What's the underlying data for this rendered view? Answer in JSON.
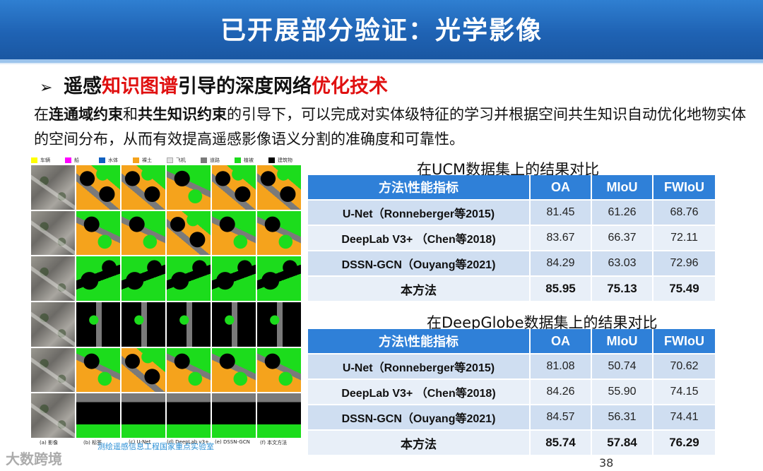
{
  "title": "已开展部分验证：光学影像",
  "heading": {
    "bullet": "➢",
    "part1": "遥感",
    "part2_red": "知识图谱",
    "part3": "引导的深度网络",
    "part4_red": "优化技术"
  },
  "paragraph": {
    "p1": "在",
    "b1": "连通域约束",
    "p2": "和",
    "b2": "共生知识约束",
    "p3": "的引导下，可以完成对实体级特征的学习并根据空间共生知识自动优化地物实体的空间分布，从而有效提高遥感影像语义分割的准确度和可靠性。"
  },
  "legend": [
    {
      "label": "车辆",
      "color": "#ffff00"
    },
    {
      "label": "船",
      "color": "#ff00ff"
    },
    {
      "label": "水体",
      "color": "#1060c0"
    },
    {
      "label": "裸土",
      "color": "#f5a31c"
    },
    {
      "label": "飞机",
      "color": "#e0e0e0"
    },
    {
      "label": "道路",
      "color": "#7a7a7a"
    },
    {
      "label": "植被",
      "color": "#1cdc1c"
    },
    {
      "label": "建筑物",
      "color": "#000000"
    }
  ],
  "grid_captions": [
    "(a) 影像",
    "(b) 标签",
    "(c) U-Net",
    "(d) DeepLab v3+",
    "(e) DSSN-GCN",
    "(f) 本文方法"
  ],
  "lab_caption": "测绘遥感信息工程国家重点实验室",
  "tables": [
    {
      "caption": "在UCM数据集上的结果对比",
      "headers": [
        "方法\\性能指标",
        "OA",
        "MIoU",
        "FWIoU"
      ],
      "rows": [
        [
          "U-Net（Ronneberger等2015)",
          "81.45",
          "61.26",
          "68.76"
        ],
        [
          "DeepLab V3+  （Chen等2018)",
          "83.67",
          "66.37",
          "72.11"
        ],
        [
          "DSSN-GCN（Ouyang等2021)",
          "84.29",
          "63.03",
          "72.96"
        ],
        [
          "本方法",
          "85.95",
          "75.13",
          "75.49"
        ]
      ]
    },
    {
      "caption": "在DeepGlobe数据集上的结果对比",
      "headers": [
        "方法\\性能指标",
        "OA",
        "MIoU",
        "FWIoU"
      ],
      "rows": [
        [
          "U-Net（Ronneberger等2015)",
          "81.08",
          "50.74",
          "70.62"
        ],
        [
          "DeepLab V3+  （Chen等2018)",
          "84.26",
          "55.90",
          "74.15"
        ],
        [
          "DSSN-GCN（Ouyang等2021)",
          "84.57",
          "56.31",
          "74.41"
        ],
        [
          "本方法",
          "85.74",
          "57.84",
          "76.29"
        ]
      ]
    }
  ],
  "page_number": "38",
  "watermark": "大数跨境"
}
